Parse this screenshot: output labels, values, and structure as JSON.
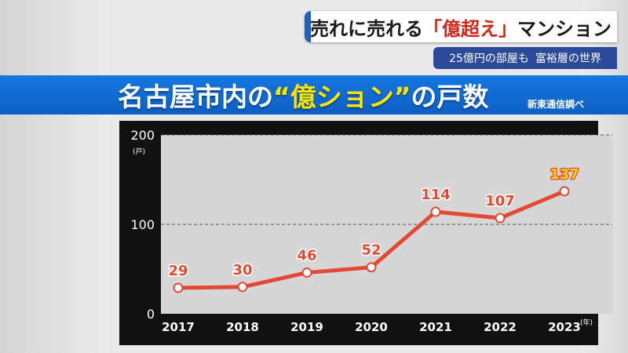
{
  "caption": {
    "main_part1": "売れに売れる",
    "main_part2": "「億超え」",
    "main_part3": "マンション",
    "sub_part1": "25億円の部屋も",
    "sub_part2": "富裕層の世界"
  },
  "banner": {
    "title_part1": "名古屋市内の",
    "title_part2": "“億ション”",
    "title_part3": "の戸数",
    "source": "新東通信調べ"
  },
  "colors": {
    "line": "#e34a35",
    "label": "#e34a35",
    "highlight_label": "#ffd21a",
    "plot_bg": "#d6d6d6"
  },
  "chart_data": {
    "type": "line",
    "title": "名古屋市内の“億ション”の戸数",
    "x": [
      2017,
      2018,
      2019,
      2020,
      2021,
      2022,
      2023
    ],
    "series": [
      {
        "values": [
          29,
          30,
          46,
          52,
          114,
          107,
          137
        ]
      }
    ],
    "data_labels": [
      "29",
      "30",
      "46",
      "52",
      "114",
      "107",
      "137"
    ],
    "highlight_index": 6,
    "x_tick_labels": [
      "2017",
      "2018",
      "2019",
      "2020",
      "2021",
      "2022",
      "2023"
    ],
    "x_unit": "(年)",
    "y_tick_labels": [
      "0",
      "100",
      "200"
    ],
    "y_ticks": [
      0,
      100,
      200
    ],
    "y_unit": "(戸)",
    "ylim": [
      0,
      200
    ],
    "grid": true,
    "legend": "none"
  }
}
